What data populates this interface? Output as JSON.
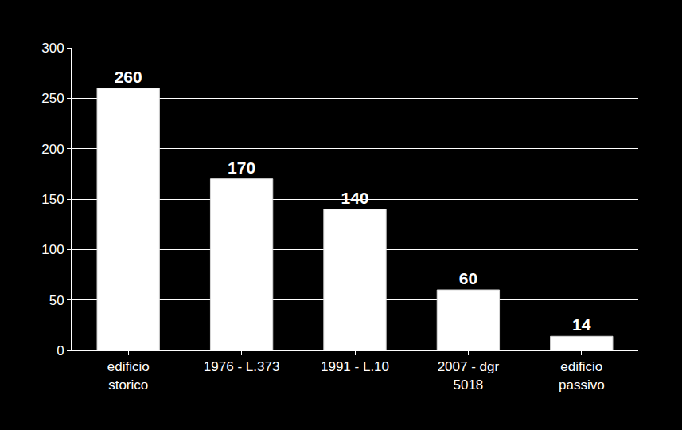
{
  "chart_data": {
    "type": "bar",
    "categories": [
      "edificio storico",
      "1976 - L.373",
      "1991 - L.10",
      "2007 - dgr 5018",
      "edificio passivo"
    ],
    "values": [
      260,
      170,
      140,
      60,
      14
    ],
    "color": "#ffffff",
    "ylim": [
      0,
      300
    ],
    "yticks": [
      0,
      50,
      100,
      150,
      200,
      250,
      300
    ],
    "grid": true,
    "data_labels": true
  }
}
